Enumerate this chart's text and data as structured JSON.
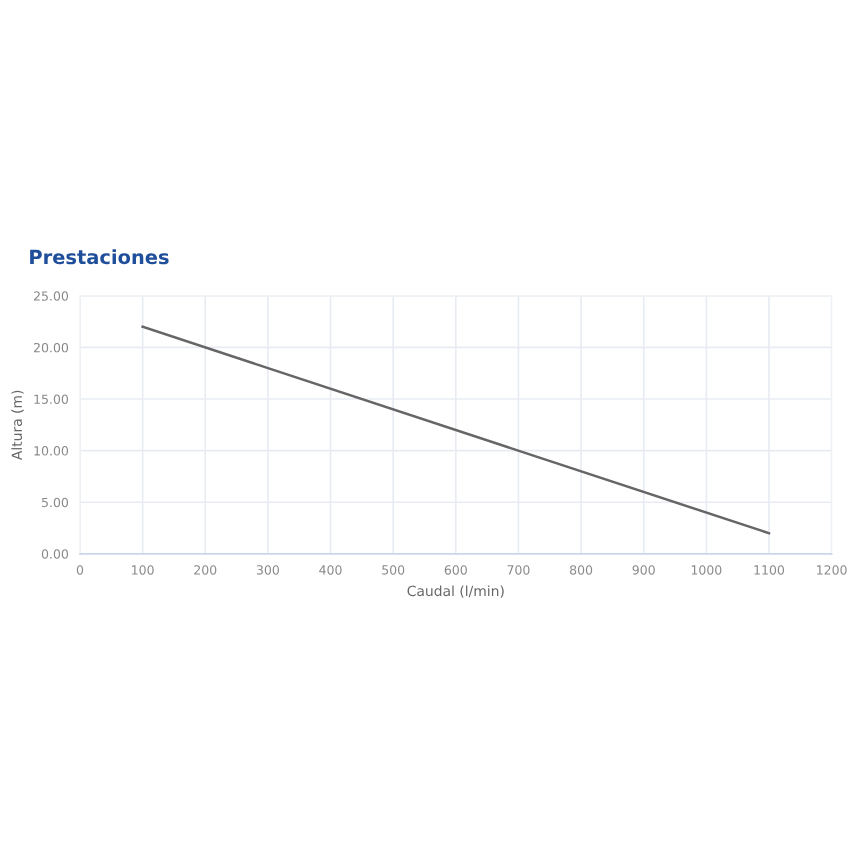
{
  "chart_data": {
    "type": "line",
    "title": "Prestaciones",
    "xlabel": "Caudal (l/min)",
    "ylabel": "Altura (m)",
    "x": [
      100,
      1100
    ],
    "series": [
      {
        "color": "#666666",
        "values": [
          22,
          2
        ]
      }
    ],
    "xlim": [
      0,
      1200
    ],
    "xticks": [
      0,
      100,
      200,
      300,
      400,
      500,
      600,
      700,
      800,
      900,
      1000,
      1100,
      1200
    ],
    "ylim": [
      0,
      25
    ],
    "yticks": [
      {
        "value": 0,
        "label": "0.00"
      },
      {
        "value": 5,
        "label": "5.00"
      },
      {
        "value": 10,
        "label": "10.00"
      },
      {
        "value": 15,
        "label": "15.00"
      },
      {
        "value": 20,
        "label": "20.00"
      },
      {
        "value": 25,
        "label": "25.00"
      }
    ],
    "grid": true,
    "marker": "none",
    "line_style": "solid"
  }
}
